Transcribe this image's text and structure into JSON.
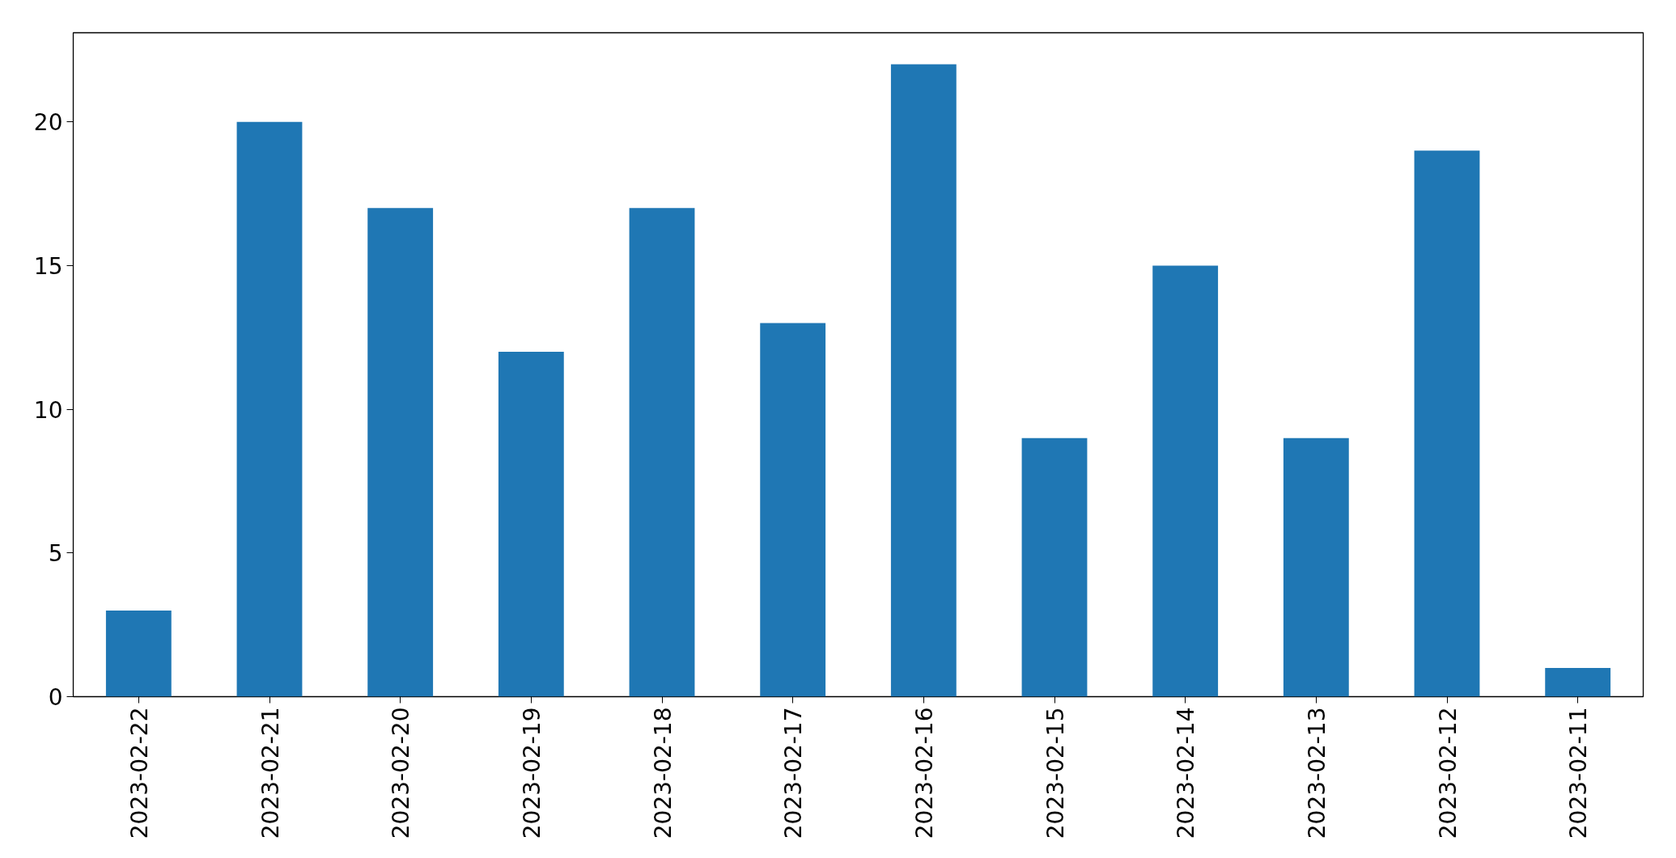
{
  "chart_data": {
    "type": "bar",
    "categories": [
      "2023-02-22",
      "2023-02-21",
      "2023-02-20",
      "2023-02-19",
      "2023-02-18",
      "2023-02-17",
      "2023-02-16",
      "2023-02-15",
      "2023-02-14",
      "2023-02-13",
      "2023-02-12",
      "2023-02-11"
    ],
    "values": [
      3,
      20,
      17,
      12,
      17,
      13,
      22,
      9,
      15,
      9,
      19,
      1
    ],
    "color": "#1f77b4",
    "ylim": [
      0,
      23.1
    ],
    "yticks": [
      0,
      5,
      10,
      15,
      20
    ],
    "grid": false
  }
}
